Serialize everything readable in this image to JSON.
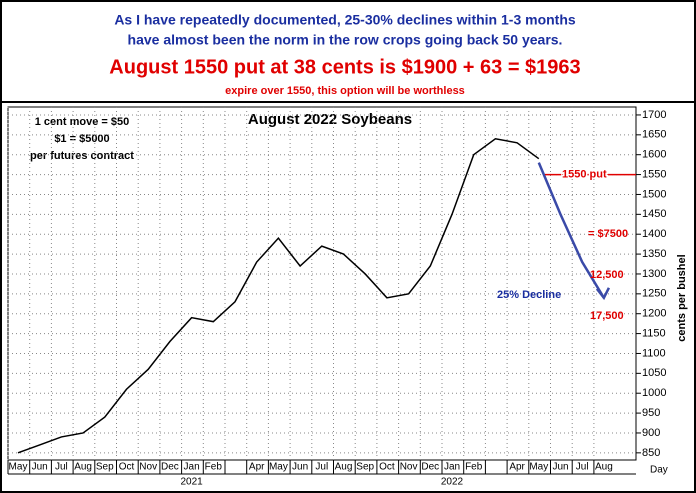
{
  "header": {
    "line1": "As I have repeatedly documented, 25-30% declines within 1-3 months",
    "line2": "have almost been the norm in the row crops going back 50 years.",
    "line3": "August 1550 put at 38 cents is $1900 + 63 = $1963",
    "line4": "expire over 1550, this option will be worthless"
  },
  "chart_data": {
    "type": "line",
    "title": "August 2022 Soybeans",
    "y_label": "cents per bushel",
    "x_end_label": "Day",
    "notes": [
      "1 cent move = $50",
      "$1 = $5000",
      "per futures contract"
    ],
    "categories": [
      "May",
      "Jun",
      "Jul",
      "Aug",
      "Sep",
      "Oct",
      "Nov",
      "Dec",
      "Jan",
      "Feb",
      null,
      "Apr",
      "May",
      "Jun",
      "Jul",
      "Aug",
      "Sep",
      "Oct",
      "Nov",
      "Dec",
      "Jan",
      "Feb",
      null,
      "Apr",
      "May",
      "Jun",
      "Jul",
      "Aug"
    ],
    "year_labels": [
      "2021",
      "2022"
    ],
    "series": [
      {
        "name": "Price",
        "color": "#000000",
        "values": [
          850,
          870,
          890,
          900,
          940,
          1010,
          1060,
          1130,
          1190,
          1180,
          1230,
          1330,
          1390,
          1320,
          1370,
          1350,
          1300,
          1240,
          1250,
          1320,
          1450,
          1600,
          1640,
          1630,
          1590,
          null,
          null,
          null
        ]
      },
      {
        "name": "Projection",
        "color": "#3a4aa8",
        "values": [
          null,
          null,
          null,
          null,
          null,
          null,
          null,
          null,
          null,
          null,
          null,
          null,
          null,
          null,
          null,
          null,
          null,
          null,
          null,
          null,
          null,
          null,
          null,
          null,
          1580,
          1450,
          1330,
          1240
        ]
      }
    ],
    "strike": {
      "value": 1550,
      "label": "1550 put"
    },
    "annotations": [
      "= $7500",
      "12,500",
      "17,500"
    ],
    "decline_label": "25% Decline",
    "ylim": [
      832,
      1720
    ],
    "yticks": [
      850,
      900,
      950,
      1000,
      1050,
      1100,
      1150,
      1200,
      1250,
      1300,
      1350,
      1400,
      1450,
      1500,
      1550,
      1600,
      1650,
      1700
    ],
    "grid": true
  }
}
